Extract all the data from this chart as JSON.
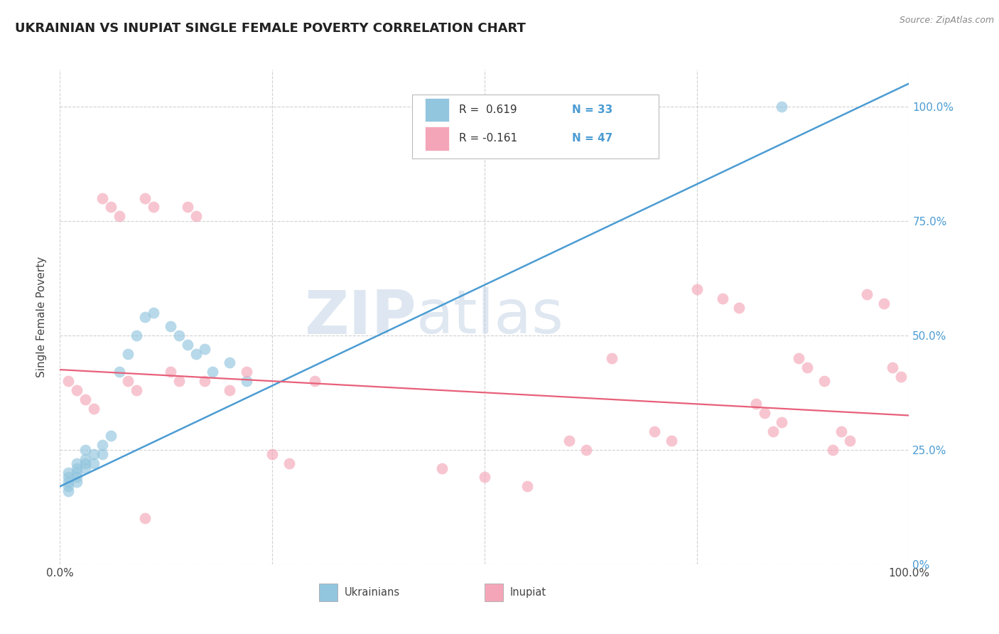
{
  "title": "UKRAINIAN VS INUPIAT SINGLE FEMALE POVERTY CORRELATION CHART",
  "source": "Source: ZipAtlas.com",
  "ylabel": "Single Female Poverty",
  "watermark_zip": "ZIP",
  "watermark_atlas": "atlas",
  "xlim": [
    0.0,
    1.0
  ],
  "ylim": [
    0.0,
    1.08
  ],
  "legend_r1": "R =  0.619",
  "legend_n1": "N = 33",
  "legend_r2": "R = -0.161",
  "legend_n2": "N = 47",
  "blue_color": "#92C5DE",
  "pink_color": "#F4A6B8",
  "blue_line_color": "#4B9CD3",
  "pink_line_color": "#E8607A",
  "blue_trend": [
    0.0,
    0.17,
    1.0,
    1.05
  ],
  "pink_trend": [
    0.0,
    0.425,
    1.0,
    0.325
  ],
  "ukrainians_x": [
    0.01,
    0.01,
    0.01,
    0.01,
    0.01,
    0.02,
    0.02,
    0.02,
    0.02,
    0.02,
    0.03,
    0.03,
    0.03,
    0.03,
    0.04,
    0.04,
    0.05,
    0.05,
    0.06,
    0.07,
    0.08,
    0.09,
    0.1,
    0.11,
    0.13,
    0.14,
    0.15,
    0.16,
    0.17,
    0.18,
    0.2,
    0.22,
    0.85
  ],
  "ukrainians_y": [
    0.2,
    0.19,
    0.18,
    0.17,
    0.16,
    0.22,
    0.21,
    0.2,
    0.19,
    0.18,
    0.25,
    0.23,
    0.22,
    0.21,
    0.24,
    0.22,
    0.26,
    0.24,
    0.28,
    0.42,
    0.46,
    0.5,
    0.54,
    0.55,
    0.52,
    0.5,
    0.48,
    0.46,
    0.47,
    0.42,
    0.44,
    0.4,
    1.0
  ],
  "inupiat_x": [
    0.01,
    0.02,
    0.03,
    0.04,
    0.05,
    0.06,
    0.07,
    0.08,
    0.09,
    0.1,
    0.11,
    0.13,
    0.14,
    0.15,
    0.16,
    0.17,
    0.2,
    0.22,
    0.25,
    0.27,
    0.3,
    0.45,
    0.5,
    0.55,
    0.6,
    0.62,
    0.65,
    0.7,
    0.72,
    0.75,
    0.78,
    0.8,
    0.82,
    0.83,
    0.84,
    0.85,
    0.87,
    0.88,
    0.9,
    0.91,
    0.92,
    0.93,
    0.95,
    0.97,
    0.98,
    0.99,
    0.1
  ],
  "inupiat_y": [
    0.4,
    0.38,
    0.36,
    0.34,
    0.8,
    0.78,
    0.76,
    0.4,
    0.38,
    0.8,
    0.78,
    0.42,
    0.4,
    0.78,
    0.76,
    0.4,
    0.38,
    0.42,
    0.24,
    0.22,
    0.4,
    0.21,
    0.19,
    0.17,
    0.27,
    0.25,
    0.45,
    0.29,
    0.27,
    0.6,
    0.58,
    0.56,
    0.35,
    0.33,
    0.29,
    0.31,
    0.45,
    0.43,
    0.4,
    0.25,
    0.29,
    0.27,
    0.59,
    0.57,
    0.43,
    0.41,
    0.1
  ]
}
